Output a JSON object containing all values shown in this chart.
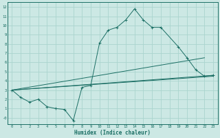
{
  "xlabel": "Humidex (Indice chaleur)",
  "bg_color": "#cce8e4",
  "grid_color": "#aad4ce",
  "line_color": "#1a6e64",
  "x_main": [
    0,
    1,
    2,
    3,
    4,
    5,
    6,
    7,
    8,
    9,
    10,
    11,
    12,
    13,
    14,
    15,
    16,
    17,
    19,
    20,
    21,
    22,
    23
  ],
  "y_main": [
    3.0,
    2.2,
    1.7,
    2.0,
    1.2,
    1.0,
    0.9,
    -0.3,
    3.3,
    3.5,
    8.1,
    9.5,
    9.8,
    10.6,
    11.8,
    10.6,
    9.8,
    9.8,
    7.7,
    6.5,
    5.2,
    4.5,
    4.6
  ],
  "line_a": [
    [
      0,
      23
    ],
    [
      3.0,
      4.6
    ]
  ],
  "line_b": [
    [
      0,
      23
    ],
    [
      3.0,
      4.5
    ]
  ],
  "line_c": [
    [
      0,
      22
    ],
    [
      3.0,
      6.5
    ]
  ],
  "xlim": [
    -0.5,
    23.5
  ],
  "ylim": [
    -0.7,
    12.5
  ],
  "ytick_vals": [
    0,
    1,
    2,
    3,
    4,
    5,
    6,
    7,
    8,
    9,
    10,
    11,
    12
  ],
  "ytick_labels": [
    "-0",
    "1",
    "2",
    "3",
    "4",
    "5",
    "6",
    "7",
    "8",
    "9",
    "10",
    "11",
    "12"
  ],
  "xtick_vals": [
    0,
    1,
    2,
    3,
    4,
    5,
    6,
    7,
    8,
    9,
    10,
    11,
    12,
    13,
    14,
    15,
    16,
    17,
    18,
    19,
    20,
    21,
    22,
    23
  ]
}
